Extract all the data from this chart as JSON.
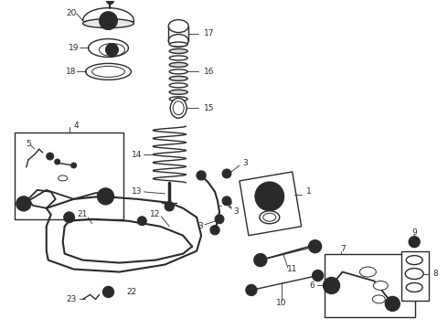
{
  "bg_color": "#ffffff",
  "line_color": "#2a2a2a",
  "figsize": [
    4.9,
    3.6
  ],
  "dpi": 100,
  "lw": 1.0,
  "label_fs": 6.5
}
